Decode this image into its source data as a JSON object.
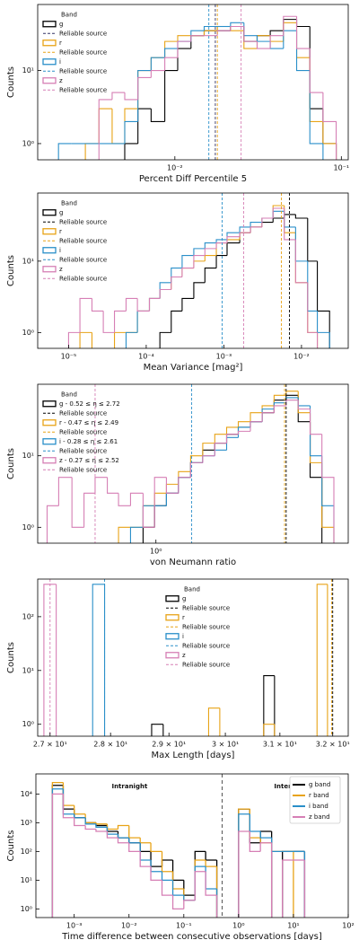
{
  "chart_data": [
    {
      "type": "histogram",
      "xlabel": "Percent Diff Percentile 5",
      "ylabel": "Counts",
      "xlog": true,
      "ylog": true,
      "xlim": [
        0.0015,
        0.11
      ],
      "ylim": [
        0.6,
        80
      ],
      "xticks": [
        {
          "value": 0.01,
          "label": "10⁻²"
        },
        {
          "value": 0.1,
          "label": "10⁻¹"
        }
      ],
      "yticks": [
        {
          "value": 1,
          "label": "10⁰"
        },
        {
          "value": 10,
          "label": "10¹"
        }
      ],
      "legend": {
        "title": "Band",
        "loc": "upper left"
      },
      "bins": [
        0.002,
        0.0024,
        0.0029,
        0.0035,
        0.0042,
        0.005,
        0.006,
        0.0072,
        0.0087,
        0.0104,
        0.0125,
        0.015,
        0.018,
        0.0216,
        0.026,
        0.0312,
        0.0374,
        0.0449,
        0.0539,
        0.0647,
        0.0776,
        0.0931
      ],
      "series": [
        {
          "name": "g",
          "color": "#000000",
          "values": [
            0,
            0,
            0,
            0,
            0,
            1,
            3,
            2,
            10,
            20,
            30,
            35,
            35,
            40,
            25,
            30,
            35,
            50,
            40,
            3,
            1
          ]
        },
        {
          "name": "r",
          "color": "#e8a317",
          "values": [
            0,
            0,
            1,
            3,
            1,
            3,
            10,
            15,
            25,
            30,
            30,
            35,
            40,
            35,
            20,
            30,
            25,
            45,
            15,
            2,
            1
          ]
        },
        {
          "name": "i",
          "color": "#2a8fc9",
          "values": [
            1,
            1,
            1,
            1,
            1,
            2,
            10,
            15,
            20,
            25,
            35,
            40,
            40,
            45,
            30,
            25,
            20,
            35,
            10,
            1,
            0
          ]
        },
        {
          "name": "z",
          "color": "#d67fb5",
          "values": [
            0,
            0,
            0,
            4,
            5,
            4,
            8,
            10,
            15,
            25,
            30,
            30,
            35,
            40,
            25,
            20,
            30,
            55,
            20,
            5,
            2
          ]
        }
      ],
      "reliable": [
        {
          "name": "Reliable source",
          "color": "#333366",
          "value": 0.0175
        },
        {
          "name": "Reliable source",
          "color": "#e8a317",
          "value": 0.018
        },
        {
          "name": "Reliable source",
          "color": "#2a8fc9",
          "value": 0.016
        },
        {
          "name": "Reliable source",
          "color": "#d67fb5",
          "value": 0.025
        }
      ]
    },
    {
      "type": "histogram",
      "xlabel": "Mean Variance [mag²]",
      "ylabel": "Counts",
      "xlog": true,
      "ylog": true,
      "xlim": [
        4e-06,
        0.04
      ],
      "ylim": [
        0.6,
        90
      ],
      "xticks": [
        {
          "value": 1e-05,
          "label": "10⁻⁵"
        },
        {
          "value": 0.0001,
          "label": "10⁻⁴"
        },
        {
          "value": 0.001,
          "label": "10⁻³"
        },
        {
          "value": 0.01,
          "label": "10⁻²"
        }
      ],
      "yticks": [
        {
          "value": 1,
          "label": "10⁰"
        },
        {
          "value": 10,
          "label": "10¹"
        }
      ],
      "legend": {
        "title": "Band",
        "loc": "upper left"
      },
      "bins": [
        1e-05,
        1.4e-05,
        2e-05,
        2.8e-05,
        3.9e-05,
        5.5e-05,
        7.7e-05,
        0.00011,
        0.00015,
        0.00021,
        0.00029,
        0.00041,
        0.00057,
        0.0008,
        0.0011,
        0.0016,
        0.0022,
        0.0031,
        0.0043,
        0.006,
        0.0084,
        0.012,
        0.016,
        0.023
      ],
      "series": [
        {
          "name": "g",
          "color": "#000000",
          "values": [
            0,
            0,
            0,
            0,
            0,
            0,
            0,
            0,
            1,
            2,
            3,
            5,
            8,
            12,
            18,
            25,
            30,
            35,
            40,
            45,
            40,
            10,
            2
          ]
        },
        {
          "name": "r",
          "color": "#e8a317",
          "values": [
            0,
            1,
            0,
            0,
            1,
            1,
            2,
            3,
            4,
            6,
            8,
            10,
            12,
            18,
            20,
            25,
            30,
            40,
            60,
            25,
            5,
            1,
            0
          ]
        },
        {
          "name": "i",
          "color": "#2a8fc9",
          "values": [
            0,
            0,
            0,
            0,
            0,
            1,
            2,
            3,
            5,
            8,
            12,
            15,
            18,
            20,
            25,
            30,
            35,
            40,
            50,
            30,
            10,
            2,
            1
          ]
        },
        {
          "name": "z",
          "color": "#d67fb5",
          "values": [
            1,
            3,
            2,
            1,
            2,
            3,
            2,
            3,
            4,
            6,
            8,
            12,
            15,
            18,
            22,
            25,
            30,
            40,
            55,
            20,
            5,
            1,
            0
          ]
        }
      ],
      "reliable": [
        {
          "name": "Reliable source",
          "color": "#000000",
          "value": 0.007
        },
        {
          "name": "Reliable source",
          "color": "#e8a317",
          "value": 0.0055
        },
        {
          "name": "Reliable source",
          "color": "#2a8fc9",
          "value": 0.00095
        },
        {
          "name": "Reliable source",
          "color": "#d67fb5",
          "value": 0.0018
        }
      ]
    },
    {
      "type": "histogram",
      "xlabel": "von Neumann ratio",
      "ylabel": "Counts",
      "xlog": true,
      "ylog": true,
      "xlim": [
        0.42,
        4.1
      ],
      "ylim": [
        0.6,
        100
      ],
      "xticks": [
        {
          "value": 1,
          "label": "10⁰"
        }
      ],
      "yticks": [
        {
          "value": 1,
          "label": "10⁰"
        },
        {
          "value": 10,
          "label": "10¹"
        }
      ],
      "legend": {
        "title": "Band",
        "loc": "upper left"
      },
      "bins": [
        0.45,
        0.49,
        0.54,
        0.59,
        0.64,
        0.7,
        0.76,
        0.83,
        0.91,
        0.99,
        1.08,
        1.18,
        1.29,
        1.41,
        1.54,
        1.68,
        1.83,
        2.0,
        2.18,
        2.38,
        2.6,
        2.84,
        3.1,
        3.38,
        3.69
      ],
      "series": [
        {
          "name": "g - 0.52 ≤ η ≤ 2.72",
          "color": "#000000",
          "values": [
            0,
            0,
            0,
            0,
            0,
            0,
            0,
            0,
            1,
            2,
            3,
            5,
            8,
            12,
            15,
            20,
            25,
            30,
            40,
            60,
            70,
            30,
            5,
            0
          ]
        },
        {
          "name": "r - 0.47 ≤ η ≤ 2.49",
          "color": "#e8a317",
          "values": [
            0,
            0,
            0,
            0,
            0,
            0,
            1,
            1,
            2,
            3,
            4,
            6,
            10,
            15,
            20,
            25,
            30,
            40,
            50,
            70,
            80,
            40,
            8,
            1
          ]
        },
        {
          "name": "i - 0.28 ≤ η ≤ 2.61",
          "color": "#2a8fc9",
          "values": [
            0,
            0,
            0,
            0,
            0,
            0,
            0,
            1,
            2,
            2,
            3,
            5,
            8,
            10,
            12,
            18,
            25,
            30,
            45,
            55,
            65,
            50,
            10,
            2
          ]
        },
        {
          "name": "z - 0.27 ≤ η ≤ 2.52",
          "color": "#d67fb5",
          "values": [
            2,
            5,
            1,
            3,
            5,
            3,
            2,
            3,
            1,
            5,
            3,
            5,
            8,
            10,
            15,
            20,
            22,
            30,
            40,
            50,
            60,
            45,
            20,
            5
          ]
        }
      ],
      "reliable": [
        {
          "name": "Reliable source",
          "color": "#000000",
          "value": 2.6
        },
        {
          "name": "Reliable source",
          "color": "#e8a317",
          "value": 2.57
        },
        {
          "name": "Reliable source",
          "color": "#2a8fc9",
          "value": 1.3
        },
        {
          "name": "Reliable source",
          "color": "#d67fb5",
          "value": 0.64
        }
      ]
    },
    {
      "type": "histogram",
      "xlabel": "Max Length [days]",
      "ylabel": "Counts",
      "xlog": true,
      "ylog": true,
      "xlim": [
        26.8,
        32.3
      ],
      "ylim": [
        0.6,
        500
      ],
      "xticks": [
        {
          "value": 27,
          "label": "2.7 × 10¹"
        },
        {
          "value": 28,
          "label": "2.8 × 10¹"
        },
        {
          "value": 29,
          "label": "2.9 × 10¹"
        },
        {
          "value": 30,
          "label": "3 × 10¹"
        },
        {
          "value": 31,
          "label": "3.1 × 10¹"
        },
        {
          "value": 32,
          "label": "3.2 × 10¹"
        }
      ],
      "yticks": [
        {
          "value": 1,
          "label": "10⁰"
        },
        {
          "value": 10,
          "label": "10¹"
        },
        {
          "value": 100,
          "label": "10²"
        }
      ],
      "legend": {
        "title": "Band",
        "loc": "upper center"
      },
      "bins": [
        26.9,
        27.1,
        27.3,
        27.5,
        27.7,
        27.9,
        28.1,
        28.3,
        28.5,
        28.7,
        28.9,
        29.1,
        29.3,
        29.5,
        29.7,
        29.9,
        30.1,
        30.3,
        30.5,
        30.7,
        30.9,
        31.1,
        31.3,
        31.5,
        31.7,
        31.9,
        32.1
      ],
      "series": [
        {
          "name": "g",
          "color": "#000000",
          "values": [
            0,
            0,
            0,
            0,
            0,
            0,
            0,
            0,
            0,
            1,
            0,
            0,
            0,
            0,
            0,
            0,
            0,
            0,
            0,
            8,
            0,
            0,
            0,
            0,
            0,
            0
          ]
        },
        {
          "name": "r",
          "color": "#e8a317",
          "values": [
            0,
            0,
            0,
            0,
            0,
            0,
            0,
            0,
            0,
            0,
            0,
            0,
            0,
            0,
            2,
            0,
            0,
            0,
            0,
            1,
            0,
            0,
            0,
            0,
            400,
            0
          ]
        },
        {
          "name": "i",
          "color": "#2a8fc9",
          "values": [
            0,
            0,
            0,
            0,
            400,
            0,
            0,
            0,
            0,
            0,
            0,
            0,
            0,
            0,
            0,
            0,
            0,
            0,
            0,
            0,
            0,
            0,
            0,
            0,
            0,
            0
          ]
        },
        {
          "name": "z",
          "color": "#d67fb5",
          "values": [
            400,
            0,
            0,
            0,
            0,
            0,
            0,
            0,
            0,
            0,
            0,
            0,
            0,
            0,
            0,
            0,
            0,
            0,
            0,
            0,
            0,
            0,
            0,
            0,
            0,
            0
          ]
        }
      ],
      "reliable": [
        {
          "name": "Reliable source",
          "color": "#000000",
          "value": 32.0
        },
        {
          "name": "Reliable source",
          "color": "#e8a317",
          "value": 31.98
        },
        {
          "name": "Reliable source",
          "color": "#2a8fc9",
          "value": 27.9
        },
        {
          "name": "Reliable source",
          "color": "#d67fb5",
          "value": 27.0
        }
      ]
    },
    {
      "type": "histogram",
      "xlabel": "Time difference between consecutive observations [days]",
      "ylabel": "Counts",
      "xlog": true,
      "ylog": true,
      "xlim": [
        0.0002,
        100
      ],
      "ylim": [
        0.5,
        50000
      ],
      "xticks": [
        {
          "value": 0.001,
          "label": "10⁻³"
        },
        {
          "value": 0.01,
          "label": "10⁻²"
        },
        {
          "value": 0.1,
          "label": "10⁻¹"
        },
        {
          "value": 1,
          "label": "10⁰"
        },
        {
          "value": 10,
          "label": "10¹"
        },
        {
          "value": 100,
          "label": "10²"
        }
      ],
      "yticks": [
        {
          "value": 1,
          "label": "10⁰"
        },
        {
          "value": 10,
          "label": "10¹"
        },
        {
          "value": 100,
          "label": "10²"
        },
        {
          "value": 1000,
          "label": "10³"
        },
        {
          "value": 10000,
          "label": "10⁴"
        }
      ],
      "legend": {
        "loc": "upper right",
        "frame": true
      },
      "annotations": [
        "Intranight",
        "Internight"
      ],
      "divider": {
        "value": 0.5,
        "color": "#555555"
      },
      "bins": [
        0.0004,
        0.00063,
        0.001,
        0.0016,
        0.0025,
        0.004,
        0.0063,
        0.01,
        0.016,
        0.025,
        0.04,
        0.063,
        0.1,
        0.16,
        0.25,
        0.4,
        0.63,
        1.0,
        1.6,
        2.5,
        4.0,
        6.3,
        10,
        16,
        25
      ],
      "series": [
        {
          "name": "g band",
          "color": "#000000",
          "values": [
            20000,
            3000,
            1500,
            1000,
            800,
            500,
            300,
            200,
            100,
            30,
            50,
            10,
            3,
            100,
            50,
            0,
            0,
            3000,
            200,
            500,
            0,
            100,
            100,
            0
          ]
        },
        {
          "name": "r band",
          "color": "#e8a317",
          "values": [
            25000,
            4000,
            2000,
            1000,
            900,
            600,
            800,
            300,
            200,
            100,
            20,
            5,
            2,
            50,
            30,
            0,
            0,
            3000,
            300,
            200,
            100,
            100,
            0,
            0
          ]
        },
        {
          "name": "i band",
          "color": "#2a8fc9",
          "values": [
            15000,
            2000,
            1500,
            900,
            700,
            400,
            300,
            200,
            50,
            20,
            10,
            3,
            2,
            30,
            5,
            0,
            0,
            2000,
            500,
            300,
            100,
            100,
            100,
            0
          ]
        },
        {
          "name": "z band",
          "color": "#d67fb5",
          "values": [
            10000,
            1500,
            800,
            600,
            500,
            300,
            200,
            100,
            30,
            10,
            3,
            1,
            2,
            20,
            3,
            0,
            0,
            500,
            100,
            200,
            0,
            50,
            50,
            0
          ]
        }
      ]
    }
  ]
}
